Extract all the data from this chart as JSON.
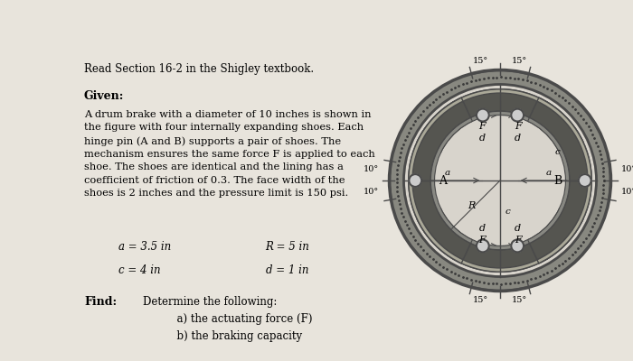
{
  "bg_color": "#e8e4dc",
  "header_text": "Read Section 16-2 in the Shigley textbook.",
  "given_label": "Given:",
  "body_text": "A drum brake with a diameter of 10 inches is shown in\nthe figure with four internally expanding shoes. Each\nhinge pin (A and B) supports a pair of shoes. The\nmechanism ensures the same force F is applied to each\nshoe. The shoes are identical and the lining has a\ncoefficient of friction of 0.3. The face width of the\nshoes is 2 inches and the pressure limit is 150 psi.",
  "params": [
    [
      "a = 3.5 in",
      "R = 5 in"
    ],
    [
      "c = 4 in",
      "d = 1 in"
    ]
  ],
  "find_label": "Find:",
  "find_text": "Determine the following:\n          a) the actuating force (F)\n          b) the braking capacity",
  "dark_gray": "#4a4a4a",
  "shoe_color_dark": "#555550",
  "shoe_color_light": "#888882",
  "lining_color": "#aaa898",
  "inner_bg_color": "#d8d4cc",
  "ring_color": "#888880",
  "drum_color": "#c0bab0",
  "hinge_color": "#cccccc",
  "dot_color": "#3a3a3a"
}
